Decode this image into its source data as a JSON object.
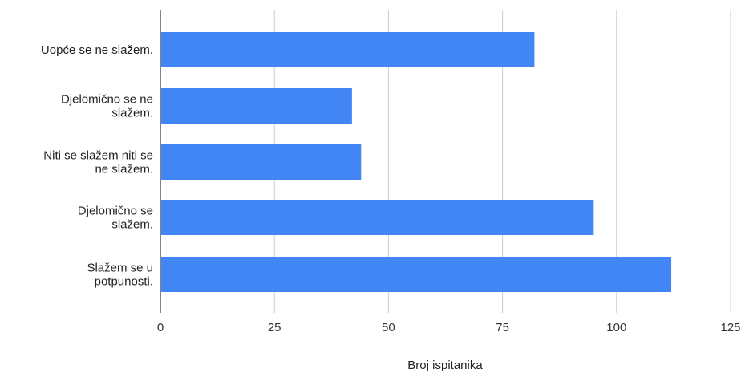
{
  "chart_data": {
    "type": "bar",
    "orientation": "horizontal",
    "categories": [
      "Uopće se ne slažem.",
      "Djelomično se ne slažem.",
      "Niti se slažem niti se ne slažem.",
      "Djelomično se slažem.",
      "Slažem se u potpunosti."
    ],
    "category_label_lines": [
      [
        "Uopće se ne slažem."
      ],
      [
        "Djelomično se ne",
        "slažem."
      ],
      [
        "Niti se slažem niti se",
        "ne slažem."
      ],
      [
        "Djelomično se",
        "slažem."
      ],
      [
        "Slažem se u",
        "potpunosti."
      ]
    ],
    "values": [
      82,
      42,
      44,
      95,
      112
    ],
    "xlabel": "Broj ispitanika",
    "ylabel": "",
    "xlim": [
      0,
      125
    ],
    "x_ticks": [
      "0",
      "25",
      "50",
      "75",
      "100",
      "125"
    ],
    "grid": "vertical",
    "legend": "none",
    "colors": {
      "bar": "#4285f4",
      "grid": "#cccccc",
      "axis": "#333333"
    }
  }
}
